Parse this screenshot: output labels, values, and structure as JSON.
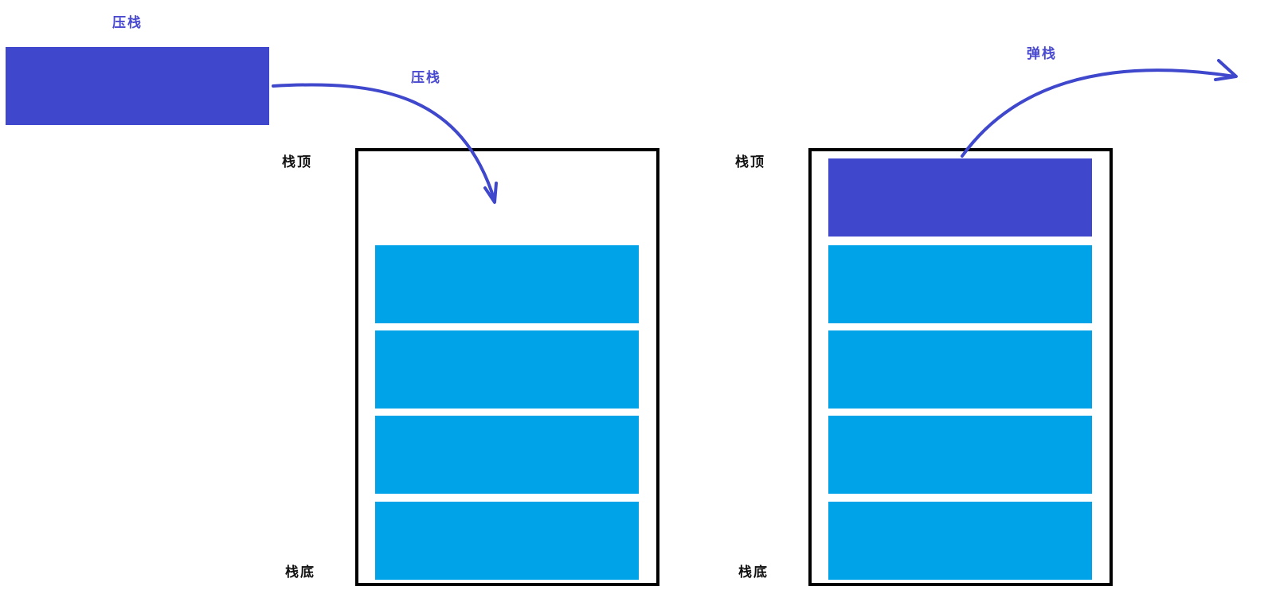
{
  "labels": {
    "push_top": "压栈",
    "push_arrow": "压栈",
    "pop_arrow": "弹栈",
    "left_top": "栈顶",
    "left_bottom": "栈底",
    "right_top": "栈顶",
    "right_bottom": "栈底"
  },
  "colors": {
    "new_element": "#3f48cc",
    "stack_element": "#00a2e8",
    "frame": "#000000",
    "arrow": "#3f48cc",
    "label_blue": "#4a4ad0"
  },
  "left_stack": {
    "element_count": 4
  },
  "right_stack": {
    "element_count": 5,
    "top_element_highlighted": true
  }
}
